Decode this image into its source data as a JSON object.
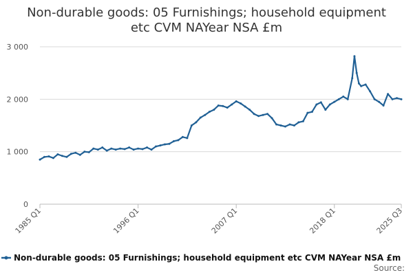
{
  "chart_data": {
    "type": "line",
    "title_lines": [
      "Non-durable goods: 05 Furnishings; household equipment",
      "etc CVM NAYear NSA £m"
    ],
    "ylim": [
      0,
      3000
    ],
    "yticks": [
      0,
      1000,
      2000,
      3000
    ],
    "ytick_labels": [
      "0",
      "1 000",
      "2 000",
      "3 000"
    ],
    "xlim": [
      1985.0,
      2025.5
    ],
    "xticks": [
      1985.0,
      1996.0,
      2007.0,
      2018.0,
      2025.5
    ],
    "xtick_labels": [
      "1985 Q1",
      "1996 Q1",
      "2007 Q1",
      "2018 Q1",
      "2025 Q3"
    ],
    "grid": "horizontal",
    "legend_position": "bottom",
    "series": [
      {
        "name": "Non-durable goods: 05 Furnishings; household equipment etc CVM NAYear NSA £m",
        "color": "#206095",
        "x": [
          1985.0,
          1985.5,
          1986.0,
          1986.5,
          1987.0,
          1987.5,
          1988.0,
          1988.5,
          1989.0,
          1989.5,
          1990.0,
          1990.5,
          1991.0,
          1991.5,
          1992.0,
          1992.5,
          1993.0,
          1993.5,
          1994.0,
          1994.5,
          1995.0,
          1995.5,
          1996.0,
          1996.5,
          1997.0,
          1997.5,
          1998.0,
          1998.5,
          1999.0,
          1999.5,
          2000.0,
          2000.5,
          2001.0,
          2001.5,
          2002.0,
          2002.5,
          2003.0,
          2003.5,
          2004.0,
          2004.5,
          2005.0,
          2005.5,
          2006.0,
          2006.5,
          2007.0,
          2007.5,
          2008.0,
          2008.5,
          2009.0,
          2009.5,
          2010.0,
          2010.5,
          2011.0,
          2011.5,
          2012.0,
          2012.5,
          2013.0,
          2013.5,
          2014.0,
          2014.5,
          2015.0,
          2015.5,
          2016.0,
          2016.5,
          2017.0,
          2017.5,
          2018.0,
          2018.5,
          2019.0,
          2019.5,
          2020.0,
          2020.25,
          2020.5,
          2020.75,
          2021.0,
          2021.5,
          2022.0,
          2022.5,
          2023.0,
          2023.5,
          2024.0,
          2024.5,
          2025.0,
          2025.5
        ],
        "values": [
          850,
          900,
          910,
          880,
          950,
          920,
          900,
          960,
          980,
          940,
          1000,
          990,
          1060,
          1040,
          1080,
          1020,
          1060,
          1040,
          1060,
          1050,
          1080,
          1040,
          1060,
          1050,
          1080,
          1040,
          1100,
          1120,
          1140,
          1150,
          1200,
          1220,
          1280,
          1260,
          1500,
          1560,
          1650,
          1700,
          1760,
          1800,
          1880,
          1870,
          1840,
          1900,
          1960,
          1920,
          1860,
          1800,
          1720,
          1680,
          1700,
          1720,
          1640,
          1520,
          1500,
          1480,
          1520,
          1500,
          1560,
          1580,
          1740,
          1760,
          1900,
          1940,
          1800,
          1900,
          1950,
          2000,
          2050,
          2000,
          2400,
          2820,
          2500,
          2300,
          2250,
          2280,
          2150,
          2000,
          1950,
          1880,
          2100,
          2000,
          2020,
          2000
        ]
      }
    ],
    "legend_label": "Non-durable goods: 05 Furnishings; household equipment etc CVM NAYear NSA £m",
    "source_label": "Source:"
  }
}
